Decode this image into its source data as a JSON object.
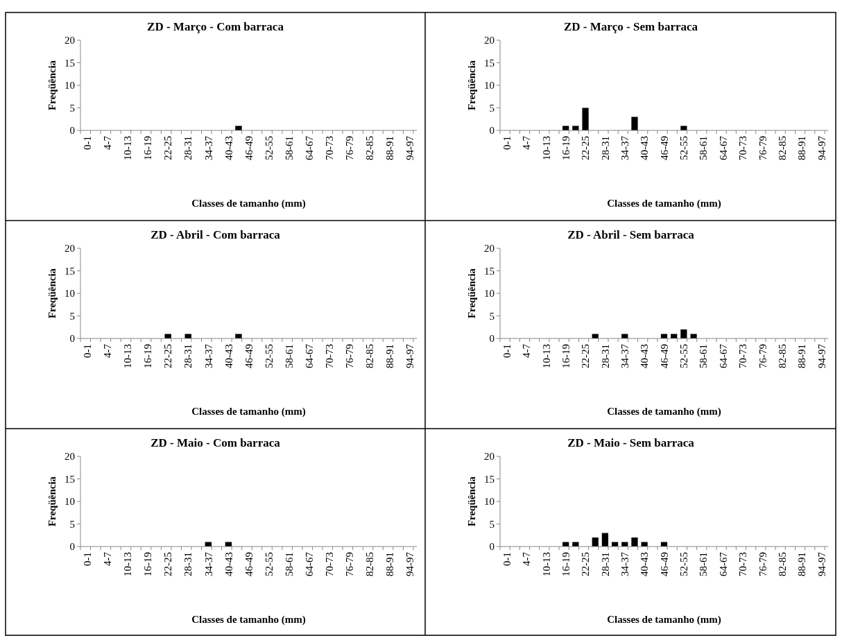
{
  "chart_data": [
    {
      "type": "bar",
      "title": "ZD - Março - Com barraca",
      "xlabel": "Classes de tamanho (mm)",
      "ylabel": "Freqüência",
      "categories": [
        "0-1",
        null,
        "4-7",
        null,
        "10-13",
        null,
        "16-19",
        null,
        "22-25",
        null,
        "28-31",
        null,
        "34-37",
        null,
        "40-43",
        null,
        "46-49",
        null,
        "52-55",
        null,
        "58-61",
        null,
        "64-67",
        null,
        "70-73",
        null,
        "76-79",
        null,
        "82-85",
        null,
        "88-91",
        null,
        "94-97"
      ],
      "values": [
        0,
        0,
        0,
        0,
        0,
        0,
        0,
        0,
        0,
        0,
        0,
        0,
        0,
        0,
        0,
        1,
        0,
        0,
        0,
        0,
        0,
        0,
        0,
        0,
        0,
        0,
        0,
        0,
        0,
        0,
        0,
        0,
        0
      ],
      "color": "#000000",
      "ylim": [
        0,
        20
      ],
      "yticks": [
        0,
        5,
        10,
        15,
        20
      ],
      "grid": false
    },
    {
      "type": "bar",
      "title": "ZD - Março - Sem barraca",
      "xlabel": "Classes de tamanho (mm)",
      "ylabel": "Freqüência",
      "categories": [
        "0-1",
        null,
        "4-7",
        null,
        "10-13",
        null,
        "16-19",
        null,
        "22-25",
        null,
        "28-31",
        null,
        "34-37",
        null,
        "40-43",
        null,
        "46-49",
        null,
        "52-55",
        null,
        "58-61",
        null,
        "64-67",
        null,
        "70-73",
        null,
        "76-79",
        null,
        "82-85",
        null,
        "88-91",
        null,
        "94-97"
      ],
      "values": [
        0,
        0,
        0,
        0,
        0,
        0,
        1,
        1,
        5,
        0,
        0,
        0,
        0,
        3,
        0,
        0,
        0,
        0,
        1,
        0,
        0,
        0,
        0,
        0,
        0,
        0,
        0,
        0,
        0,
        0,
        0,
        0,
        0
      ],
      "color": "#000000",
      "ylim": [
        0,
        20
      ],
      "yticks": [
        0,
        5,
        10,
        15,
        20
      ],
      "grid": false
    },
    {
      "type": "bar",
      "title": "ZD - Abril - Com barraca",
      "xlabel": "Classes de tamanho (mm)",
      "ylabel": "Freqüência",
      "categories": [
        "0-1",
        null,
        "4-7",
        null,
        "10-13",
        null,
        "16-19",
        null,
        "22-25",
        null,
        "28-31",
        null,
        "34-37",
        null,
        "40-43",
        null,
        "46-49",
        null,
        "52-55",
        null,
        "58-61",
        null,
        "64-67",
        null,
        "70-73",
        null,
        "76-79",
        null,
        "82-85",
        null,
        "88-91",
        null,
        "94-97"
      ],
      "values": [
        0,
        0,
        0,
        0,
        0,
        0,
        0,
        0,
        1,
        0,
        1,
        0,
        0,
        0,
        0,
        1,
        0,
        0,
        0,
        0,
        0,
        0,
        0,
        0,
        0,
        0,
        0,
        0,
        0,
        0,
        0,
        0,
        0
      ],
      "color": "#000000",
      "ylim": [
        0,
        20
      ],
      "yticks": [
        0,
        5,
        10,
        15,
        20
      ],
      "grid": false
    },
    {
      "type": "bar",
      "title": "ZD - Abril - Sem barraca",
      "xlabel": "Classes de tamanho (mm)",
      "ylabel": "Freqüência",
      "categories": [
        "0-1",
        null,
        "4-7",
        null,
        "10-13",
        null,
        "16-19",
        null,
        "22-25",
        null,
        "28-31",
        null,
        "34-37",
        null,
        "40-43",
        null,
        "46-49",
        null,
        "52-55",
        null,
        "58-61",
        null,
        "64-67",
        null,
        "70-73",
        null,
        "76-79",
        null,
        "82-85",
        null,
        "88-91",
        null,
        "94-97"
      ],
      "values": [
        0,
        0,
        0,
        0,
        0,
        0,
        0,
        0,
        0,
        1,
        0,
        0,
        1,
        0,
        0,
        0,
        1,
        1,
        2,
        1,
        0,
        0,
        0,
        0,
        0,
        0,
        0,
        0,
        0,
        0,
        0,
        0,
        0
      ],
      "color": "#000000",
      "ylim": [
        0,
        20
      ],
      "yticks": [
        0,
        5,
        10,
        15,
        20
      ],
      "grid": false
    },
    {
      "type": "bar",
      "title": "ZD - Maio - Com barraca",
      "xlabel": "Classes de tamanho (mm)",
      "ylabel": "Freqüência",
      "categories": [
        "0-1",
        null,
        "4-7",
        null,
        "10-13",
        null,
        "16-19",
        null,
        "22-25",
        null,
        "28-31",
        null,
        "34-37",
        null,
        "40-43",
        null,
        "46-49",
        null,
        "52-55",
        null,
        "58-61",
        null,
        "64-67",
        null,
        "70-73",
        null,
        "76-79",
        null,
        "82-85",
        null,
        "88-91",
        null,
        "94-97"
      ],
      "values": [
        0,
        0,
        0,
        0,
        0,
        0,
        0,
        0,
        0,
        0,
        0,
        0,
        1,
        0,
        1,
        0,
        0,
        0,
        0,
        0,
        0,
        0,
        0,
        0,
        0,
        0,
        0,
        0,
        0,
        0,
        0,
        0,
        0
      ],
      "color": "#000000",
      "ylim": [
        0,
        20
      ],
      "yticks": [
        0,
        5,
        10,
        15,
        20
      ],
      "grid": false
    },
    {
      "type": "bar",
      "title": "ZD - Maio - Sem barraca",
      "xlabel": "Classes de tamanho (mm)",
      "ylabel": "Freqüência",
      "categories": [
        "0-1",
        null,
        "4-7",
        null,
        "10-13",
        null,
        "16-19",
        null,
        "22-25",
        null,
        "28-31",
        null,
        "34-37",
        null,
        "40-43",
        null,
        "46-49",
        null,
        "52-55",
        null,
        "58-61",
        null,
        "64-67",
        null,
        "70-73",
        null,
        "76-79",
        null,
        "82-85",
        null,
        "88-91",
        null,
        "94-97"
      ],
      "values": [
        0,
        0,
        0,
        0,
        0,
        0,
        1,
        1,
        0,
        2,
        3,
        1,
        1,
        2,
        1,
        0,
        1,
        0,
        0,
        0,
        0,
        0,
        0,
        0,
        0,
        0,
        0,
        0,
        0,
        0,
        0,
        0,
        0
      ],
      "color": "#000000",
      "ylim": [
        0,
        20
      ],
      "yticks": [
        0,
        5,
        10,
        15,
        20
      ],
      "grid": false
    }
  ]
}
